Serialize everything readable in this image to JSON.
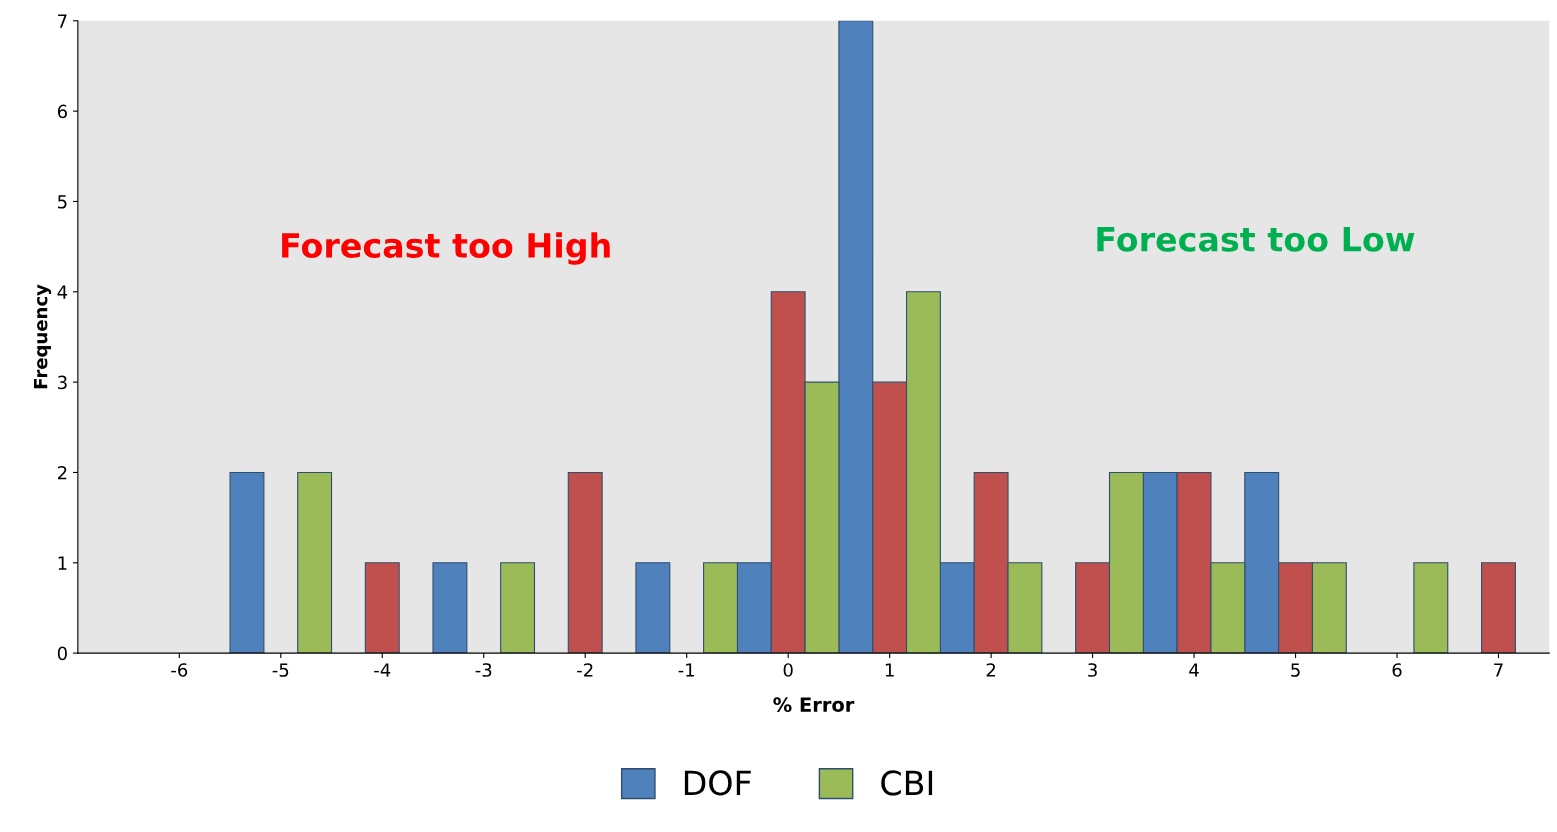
{
  "chart_data": {
    "type": "bar",
    "xlabel": "% Error",
    "ylabel": "Frequency",
    "categories": [
      "-6",
      "-5",
      "-4",
      "-3",
      "-2",
      "-1",
      "0",
      "1",
      "2",
      "3",
      "4",
      "5",
      "6",
      "7"
    ],
    "series": [
      {
        "name": "DOF",
        "color": "#4f81bd",
        "values": [
          0,
          2,
          0,
          1,
          0,
          1,
          1,
          7,
          1,
          0,
          2,
          2,
          0,
          0
        ]
      },
      {
        "color": "#c0504d",
        "values": [
          0,
          0,
          1,
          0,
          2,
          0,
          4,
          3,
          2,
          1,
          2,
          1,
          0,
          1
        ]
      },
      {
        "name": "CBI",
        "color": "#9bbb59",
        "values": [
          0,
          2,
          0,
          1,
          0,
          1,
          3,
          4,
          1,
          2,
          1,
          1,
          1,
          0
        ]
      }
    ],
    "ylim": [
      0,
      7
    ],
    "yticks": [
      0,
      1,
      2,
      3,
      4,
      5,
      6,
      7
    ],
    "grid": false,
    "legend": "bottom",
    "annotations": [
      "Forecast too High",
      "Forecast too Low"
    ]
  }
}
